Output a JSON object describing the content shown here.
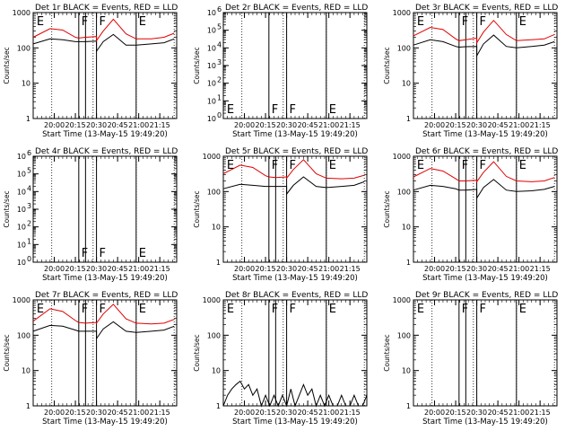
{
  "colors": {
    "events": "#000000",
    "lld": "#e00000"
  },
  "chart_data": [
    {
      "type": "line",
      "detector": "Det 1r",
      "title": "Det 1r BLACK = Events, RED = LLD",
      "xlabel": "Start Time (13-May-15 19:49:20)",
      "ylabel": "Counts/sec",
      "xlim": [
        19.75,
        21.45
      ],
      "ylim": [
        1,
        1000
      ],
      "yscale": "log",
      "yticks": [
        1,
        10,
        100,
        1000
      ],
      "yticklabels": [
        "1",
        "10",
        "100",
        "1000"
      ],
      "xticks": [
        20.0,
        20.25,
        20.5,
        20.75,
        21.0,
        21.25
      ],
      "xticklabels": [
        "20:00",
        "20:15",
        "20:30",
        "20:45",
        "21:00",
        "21:15"
      ],
      "dotted_lines": [
        19.97,
        20.46,
        20.97,
        21.42
      ],
      "solid_lines": [
        20.29,
        20.37,
        20.5,
        20.97
      ],
      "markers": [
        {
          "x": 19.78,
          "label": "E"
        },
        {
          "x": 20.31,
          "label": "F"
        },
        {
          "x": 20.52,
          "label": "F"
        },
        {
          "x": 20.99,
          "label": "E"
        }
      ],
      "series": [
        {
          "name": "Events",
          "color": "black",
          "x": [
            19.75,
            19.95,
            20.1,
            20.25,
            20.29,
            20.37,
            20.5,
            20.5,
            20.58,
            20.7,
            20.85,
            20.97,
            21.15,
            21.3,
            21.42
          ],
          "y": [
            130,
            180,
            170,
            150,
            150,
            150,
            155,
            80,
            150,
            240,
            120,
            120,
            130,
            140,
            180
          ]
        },
        {
          "name": "LLD",
          "color": "red",
          "x": [
            19.75,
            19.95,
            20.1,
            20.25,
            20.29,
            20.37,
            20.5,
            20.5,
            20.58,
            20.7,
            20.85,
            20.97,
            21.15,
            21.3,
            21.42
          ],
          "y": [
            200,
            350,
            320,
            200,
            190,
            200,
            210,
            160,
            300,
            650,
            250,
            180,
            180,
            200,
            260
          ]
        }
      ]
    },
    {
      "type": "line",
      "detector": "Det 2r",
      "title": "Det 2r BLACK = Events, RED = LLD",
      "xlabel": "Start Time (13-May-15 19:49:20)",
      "ylabel": "Counts/sec",
      "xlim": [
        19.75,
        21.45
      ],
      "ylim": [
        1,
        1000000
      ],
      "yscale": "log",
      "yticks": [
        1,
        10,
        100,
        1000,
        10000,
        100000,
        1000000
      ],
      "yticklabels": [
        "10",
        "10",
        "10",
        "10",
        "10",
        "10",
        "10"
      ],
      "ytick_exponents": [
        "0",
        "1",
        "2",
        "3",
        "4",
        "5",
        "6"
      ],
      "xticks": [
        20.0,
        20.25,
        20.5,
        20.75,
        21.0,
        21.25
      ],
      "xticklabels": [
        "20:00",
        "20:15",
        "20:30",
        "20:45",
        "21:00",
        "21:15"
      ],
      "dotted_lines": [
        19.97,
        20.46,
        20.97,
        21.42
      ],
      "solid_lines": [
        20.29,
        20.5,
        20.97
      ],
      "markers": [
        {
          "x": 19.78,
          "label": "E"
        },
        {
          "x": 20.31,
          "label": "F"
        },
        {
          "x": 20.52,
          "label": "F"
        },
        {
          "x": 20.99,
          "label": "E"
        }
      ],
      "series": []
    },
    {
      "type": "line",
      "detector": "Det 3r",
      "title": "Det 3r BLACK = Events, RED = LLD",
      "xlabel": "Start Time (13-May-15 19:49:20)",
      "ylabel": "Counts/sec",
      "xlim": [
        19.75,
        21.45
      ],
      "ylim": [
        1,
        1000
      ],
      "yscale": "log",
      "yticks": [
        1,
        10,
        100,
        1000
      ],
      "yticklabels": [
        "1",
        "10",
        "100",
        "1000"
      ],
      "xticks": [
        20.0,
        20.25,
        20.5,
        20.75,
        21.0,
        21.25
      ],
      "xticklabels": [
        "20:00",
        "20:15",
        "20:30",
        "20:45",
        "21:00",
        "21:15"
      ],
      "dotted_lines": [
        19.97,
        20.46,
        20.97,
        21.42
      ],
      "solid_lines": [
        20.29,
        20.37,
        20.5,
        20.97
      ],
      "markers": [
        {
          "x": 19.78,
          "label": "E"
        },
        {
          "x": 20.31,
          "label": "F"
        },
        {
          "x": 20.52,
          "label": "F"
        },
        {
          "x": 20.99,
          "label": "E"
        }
      ],
      "series": [
        {
          "name": "Events",
          "color": "black",
          "x": [
            19.75,
            19.95,
            20.1,
            20.25,
            20.29,
            20.37,
            20.5,
            20.5,
            20.58,
            20.7,
            20.85,
            20.97,
            21.15,
            21.3,
            21.42
          ],
          "y": [
            120,
            170,
            150,
            110,
            105,
            108,
            110,
            60,
            130,
            230,
            110,
            100,
            110,
            120,
            150
          ]
        },
        {
          "name": "LLD",
          "color": "red",
          "x": [
            19.75,
            19.95,
            20.1,
            20.25,
            20.29,
            20.37,
            20.5,
            20.5,
            20.58,
            20.7,
            20.85,
            20.97,
            21.15,
            21.3,
            21.42
          ],
          "y": [
            220,
            380,
            330,
            180,
            160,
            170,
            190,
            140,
            280,
            600,
            240,
            160,
            170,
            180,
            240
          ]
        }
      ]
    },
    {
      "type": "line",
      "detector": "Det 4r",
      "title": "Det 4r BLACK = Events, RED = LLD",
      "xlabel": "Start Time (13-May-15 19:49:20)",
      "ylabel": "Counts/sec",
      "xlim": [
        19.75,
        21.45
      ],
      "ylim": [
        1,
        1000000
      ],
      "yscale": "log",
      "yticks": [
        1,
        10,
        100,
        1000,
        10000,
        100000,
        1000000
      ],
      "yticklabels": [
        "10",
        "10",
        "10",
        "10",
        "10",
        "10",
        "10"
      ],
      "ytick_exponents": [
        "0",
        "1",
        "2",
        "3",
        "4",
        "5",
        "6"
      ],
      "xticks": [
        20.0,
        20.25,
        20.5,
        20.75,
        21.0,
        21.25
      ],
      "xticklabels": [
        "20:00",
        "20:15",
        "20:30",
        "20:45",
        "21:00",
        "21:15"
      ],
      "dotted_lines": [
        19.97,
        20.46,
        20.97,
        21.42
      ],
      "solid_lines": [
        20.29,
        20.37,
        20.5,
        20.97
      ],
      "markers": [
        {
          "x": 20.31,
          "label": "F"
        },
        {
          "x": 20.52,
          "label": "F"
        },
        {
          "x": 20.99,
          "label": "E"
        }
      ],
      "series": []
    },
    {
      "type": "line",
      "detector": "Det 5r",
      "title": "Det 5r BLACK = Events, RED = LLD",
      "xlabel": "Start Time (13-May-15 19:49:20)",
      "ylabel": "Counts/sec",
      "xlim": [
        19.75,
        21.45
      ],
      "ylim": [
        1,
        1000
      ],
      "yscale": "log",
      "yticks": [
        1,
        10,
        100,
        1000
      ],
      "yticklabels": [
        "1",
        "10",
        "100",
        "1000"
      ],
      "xticks": [
        20.0,
        20.25,
        20.5,
        20.75,
        21.0,
        21.25
      ],
      "xticklabels": [
        "20:00",
        "20:15",
        "20:30",
        "20:45",
        "21:00",
        "21:15"
      ],
      "dotted_lines": [
        19.97,
        20.46,
        20.97,
        21.42
      ],
      "solid_lines": [
        20.29,
        20.37,
        20.5,
        20.97
      ],
      "markers": [
        {
          "x": 19.78,
          "label": "E"
        },
        {
          "x": 20.31,
          "label": "F"
        },
        {
          "x": 20.52,
          "label": "F"
        },
        {
          "x": 20.99,
          "label": "E"
        }
      ],
      "series": [
        {
          "name": "Events",
          "color": "black",
          "x": [
            19.75,
            19.95,
            20.1,
            20.25,
            20.29,
            20.37,
            20.5,
            20.5,
            20.58,
            20.7,
            20.85,
            20.97,
            21.15,
            21.3,
            21.42
          ],
          "y": [
            120,
            160,
            150,
            140,
            140,
            140,
            140,
            85,
            150,
            260,
            140,
            130,
            140,
            150,
            190
          ]
        },
        {
          "name": "LLD",
          "color": "red",
          "x": [
            19.75,
            19.95,
            20.1,
            20.25,
            20.29,
            20.37,
            20.5,
            20.5,
            20.58,
            20.7,
            20.85,
            20.97,
            21.15,
            21.3,
            21.42
          ],
          "y": [
            320,
            560,
            480,
            280,
            260,
            250,
            260,
            240,
            420,
            800,
            320,
            240,
            230,
            240,
            290
          ]
        }
      ]
    },
    {
      "type": "line",
      "detector": "Det 6r",
      "title": "Det 6r BLACK = Events, RED = LLD",
      "xlabel": "Start Time (13-May-15 19:49:20)",
      "ylabel": "Counts/sec",
      "xlim": [
        19.75,
        21.45
      ],
      "ylim": [
        1,
        1000
      ],
      "yscale": "log",
      "yticks": [
        1,
        10,
        100,
        1000
      ],
      "yticklabels": [
        "1",
        "10",
        "100",
        "1000"
      ],
      "xticks": [
        20.0,
        20.25,
        20.5,
        20.75,
        21.0,
        21.25
      ],
      "xticklabels": [
        "20:00",
        "20:15",
        "20:30",
        "20:45",
        "21:00",
        "21:15"
      ],
      "dotted_lines": [
        19.97,
        20.46,
        20.97,
        21.42
      ],
      "solid_lines": [
        20.29,
        20.37,
        20.5,
        20.97
      ],
      "markers": [
        {
          "x": 19.78,
          "label": "E"
        },
        {
          "x": 20.31,
          "label": "F"
        },
        {
          "x": 20.52,
          "label": "F"
        },
        {
          "x": 20.99,
          "label": "E"
        }
      ],
      "series": [
        {
          "name": "Events",
          "color": "black",
          "x": [
            19.75,
            19.95,
            20.1,
            20.25,
            20.29,
            20.37,
            20.5,
            20.5,
            20.58,
            20.7,
            20.85,
            20.97,
            21.15,
            21.3,
            21.42
          ],
          "y": [
            110,
            150,
            140,
            120,
            110,
            110,
            115,
            65,
            130,
            220,
            110,
            100,
            105,
            115,
            140
          ]
        },
        {
          "name": "LLD",
          "color": "red",
          "x": [
            19.75,
            19.95,
            20.1,
            20.25,
            20.29,
            20.37,
            20.5,
            20.5,
            20.58,
            20.7,
            20.85,
            20.97,
            21.15,
            21.3,
            21.42
          ],
          "y": [
            260,
            450,
            380,
            230,
            200,
            200,
            210,
            190,
            350,
            700,
            270,
            200,
            190,
            200,
            250
          ]
        }
      ]
    },
    {
      "type": "line",
      "detector": "Det 7r",
      "title": "Det 7r BLACK = Events, RED = LLD",
      "xlabel": "Start Time (13-May-15 19:49:20)",
      "ylabel": "Counts/sec",
      "xlim": [
        19.75,
        21.45
      ],
      "ylim": [
        1,
        1000
      ],
      "yscale": "log",
      "yticks": [
        1,
        10,
        100,
        1000
      ],
      "yticklabels": [
        "1",
        "10",
        "100",
        "1000"
      ],
      "xticks": [
        20.0,
        20.25,
        20.5,
        20.75,
        21.0,
        21.25
      ],
      "xticklabels": [
        "20:00",
        "20:15",
        "20:30",
        "20:45",
        "21:00",
        "21:15"
      ],
      "dotted_lines": [
        19.97,
        20.46,
        20.97,
        21.42
      ],
      "solid_lines": [
        20.29,
        20.37,
        20.5,
        20.97
      ],
      "markers": [
        {
          "x": 19.78,
          "label": "E"
        },
        {
          "x": 20.31,
          "label": "F"
        },
        {
          "x": 20.52,
          "label": "F"
        },
        {
          "x": 20.99,
          "label": "E"
        }
      ],
      "series": [
        {
          "name": "Events",
          "color": "black",
          "x": [
            19.75,
            19.95,
            20.1,
            20.25,
            20.29,
            20.37,
            20.5,
            20.5,
            20.58,
            20.7,
            20.85,
            20.97,
            21.15,
            21.3,
            21.42
          ],
          "y": [
            130,
            190,
            180,
            140,
            130,
            130,
            130,
            80,
            150,
            240,
            130,
            120,
            130,
            140,
            180
          ]
        },
        {
          "name": "LLD",
          "color": "red",
          "x": [
            19.75,
            19.95,
            20.1,
            20.25,
            20.29,
            20.37,
            20.5,
            20.5,
            20.58,
            20.7,
            20.85,
            20.97,
            21.15,
            21.3,
            21.42
          ],
          "y": [
            250,
            560,
            470,
            260,
            230,
            220,
            230,
            220,
            400,
            750,
            290,
            220,
            210,
            220,
            280
          ]
        }
      ]
    },
    {
      "type": "line",
      "detector": "Det 8r",
      "title": "Det 8r BLACK = Events, RED = LLD",
      "xlabel": "Start Time (13-May-15 19:49:20)",
      "ylabel": "Counts/sec",
      "xlim": [
        19.75,
        21.45
      ],
      "ylim": [
        1,
        1000
      ],
      "yscale": "log",
      "yticks": [
        1,
        10,
        100,
        1000
      ],
      "yticklabels": [
        "1",
        "10",
        "100",
        "1000"
      ],
      "xticks": [
        20.0,
        20.25,
        20.5,
        20.75,
        21.0,
        21.25
      ],
      "xticklabels": [
        "20:00",
        "20:15",
        "20:30",
        "20:45",
        "21:00",
        "21:15"
      ],
      "dotted_lines": [
        19.97,
        20.46,
        20.97,
        21.42
      ],
      "solid_lines": [
        20.29,
        20.37,
        20.5,
        20.97
      ],
      "markers": [
        {
          "x": 19.78,
          "label": "E"
        },
        {
          "x": 20.31,
          "label": "F"
        },
        {
          "x": 20.52,
          "label": "F"
        },
        {
          "x": 20.99,
          "label": "E"
        }
      ],
      "series": [
        {
          "name": "Events",
          "color": "black",
          "x": [
            19.75,
            19.8,
            19.85,
            19.9,
            19.95,
            20.0,
            20.05,
            20.1,
            20.15,
            20.2,
            20.25,
            20.3,
            20.35,
            20.4,
            20.45,
            20.5,
            20.55,
            20.6,
            20.65,
            20.7,
            20.75,
            20.8,
            20.85,
            20.9,
            20.95,
            21.0,
            21.05,
            21.1,
            21.15,
            21.2,
            21.25,
            21.3,
            21.35,
            21.4,
            21.45
          ],
          "y": [
            1,
            2,
            3,
            4,
            5,
            3,
            4,
            2,
            3,
            1,
            2,
            1,
            2,
            1,
            2,
            1,
            3,
            1,
            2,
            4,
            2,
            3,
            1,
            2,
            1,
            2,
            1,
            1,
            2,
            1,
            1,
            2,
            1,
            1,
            2
          ]
        }
      ]
    },
    {
      "type": "line",
      "detector": "Det 9r",
      "title": "Det 9r BLACK = Events, RED = LLD",
      "xlabel": "Start Time (13-May-15 19:49:20)",
      "ylabel": "Counts/sec",
      "xlim": [
        19.75,
        21.45
      ],
      "ylim": [
        1,
        1000
      ],
      "yscale": "log",
      "yticks": [
        1,
        10,
        100,
        1000
      ],
      "yticklabels": [
        "1",
        "10",
        "100",
        "1000"
      ],
      "xticks": [
        20.0,
        20.25,
        20.5,
        20.75,
        21.0,
        21.25
      ],
      "xticklabels": [
        "20:00",
        "20:15",
        "20:30",
        "20:45",
        "21:00",
        "21:15"
      ],
      "dotted_lines": [
        19.97,
        20.46,
        20.97,
        21.42
      ],
      "solid_lines": [
        20.29,
        20.37,
        20.5,
        20.97
      ],
      "markers": [
        {
          "x": 19.78,
          "label": "E"
        },
        {
          "x": 20.31,
          "label": "F"
        },
        {
          "x": 20.52,
          "label": "F"
        },
        {
          "x": 20.99,
          "label": "E"
        }
      ],
      "series": []
    }
  ]
}
